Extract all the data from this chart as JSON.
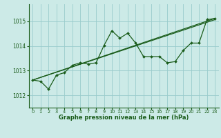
{
  "title": "Graphe pression niveau de la mer (hPa)",
  "bg_color": "#cceae7",
  "grid_color": "#99cccc",
  "line_color": "#1a5c1a",
  "xlim": [
    -0.5,
    23.5
  ],
  "ylim": [
    1011.5,
    1015.7
  ],
  "yticks": [
    1012,
    1013,
    1014,
    1015
  ],
  "xticks": [
    0,
    1,
    2,
    3,
    4,
    5,
    6,
    7,
    8,
    9,
    10,
    11,
    12,
    13,
    14,
    15,
    16,
    17,
    18,
    19,
    20,
    21,
    22,
    23
  ],
  "series1": [
    1012.62,
    1012.57,
    1012.25,
    1012.82,
    1012.92,
    1013.22,
    1013.32,
    1013.27,
    1013.32,
    1014.02,
    1014.62,
    1014.32,
    1014.52,
    1014.12,
    1013.57,
    1013.57,
    1013.57,
    1013.32,
    1013.37,
    1013.82,
    1014.12,
    1014.12,
    1015.07,
    1015.12
  ],
  "trend1_x": [
    0,
    23
  ],
  "trend1_y": [
    1012.62,
    1015.12
  ],
  "trend2_x": [
    0,
    23
  ],
  "trend2_y": [
    1012.62,
    1015.07
  ],
  "xlabel_fontsize": 6.0,
  "ytick_fontsize": 5.5,
  "xtick_fontsize": 4.8
}
